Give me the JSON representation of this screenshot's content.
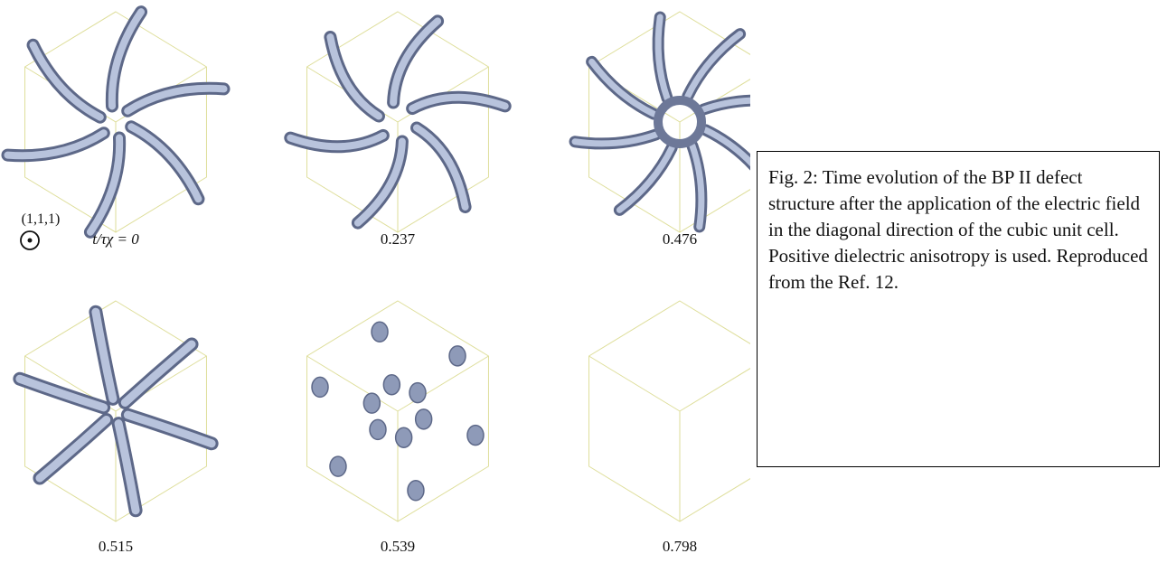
{
  "figure": {
    "panels": [
      {
        "label": "t/τχ = 0"
      },
      {
        "label": "0.237"
      },
      {
        "label": "0.476"
      },
      {
        "label": "0.515"
      },
      {
        "label": "0.539"
      },
      {
        "label": "0.798"
      }
    ],
    "direction_label": "(1,1,1)",
    "caption": "Fig. 2: Time evolution of the BP II defect structure after the application of the electric field in the diagonal direction of the cubic unit cell. Positive dielectric anisotropy is used. Reproduced from the Ref. 12."
  }
}
